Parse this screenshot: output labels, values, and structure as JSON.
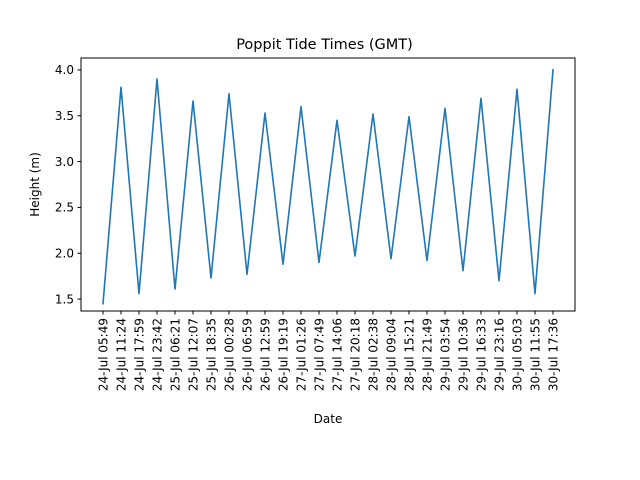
{
  "chart_data": {
    "type": "line",
    "title": "Poppit Tide Times (GMT)",
    "xlabel": "Date",
    "ylabel": "Height (m)",
    "ylim": [
      1.37,
      4.13
    ],
    "yticks": [
      1.5,
      2.0,
      2.5,
      3.0,
      3.5,
      4.0
    ],
    "ytick_labels": [
      "1.5",
      "2.0",
      "2.5",
      "3.0",
      "3.5",
      "4.0"
    ],
    "grid": false,
    "legend": "none",
    "series": [
      {
        "color": "#1f77b4",
        "x": [
          "24-Jul 05:49",
          "24-Jul 11:24",
          "24-Jul 17:59",
          "24-Jul 23:42",
          "25-Jul 06:21",
          "25-Jul 12:07",
          "25-Jul 18:35",
          "26-Jul 00:28",
          "26-Jul 06:59",
          "26-Jul 12:59",
          "26-Jul 19:19",
          "27-Jul 01:26",
          "27-Jul 07:49",
          "27-Jul 14:06",
          "27-Jul 20:18",
          "28-Jul 02:38",
          "28-Jul 09:04",
          "28-Jul 15:21",
          "28-Jul 21:49",
          "29-Jul 03:54",
          "29-Jul 10:36",
          "29-Jul 16:33",
          "29-Jul 23:16",
          "30-Jul 05:03",
          "30-Jul 11:55",
          "30-Jul 17:36"
        ],
        "y": [
          1.45,
          3.81,
          1.56,
          3.9,
          1.61,
          3.66,
          1.73,
          3.74,
          1.77,
          3.53,
          1.88,
          3.6,
          1.9,
          3.45,
          1.97,
          3.52,
          1.94,
          3.49,
          1.92,
          3.58,
          1.81,
          3.69,
          1.7,
          3.79,
          1.56,
          4.0
        ]
      }
    ]
  }
}
